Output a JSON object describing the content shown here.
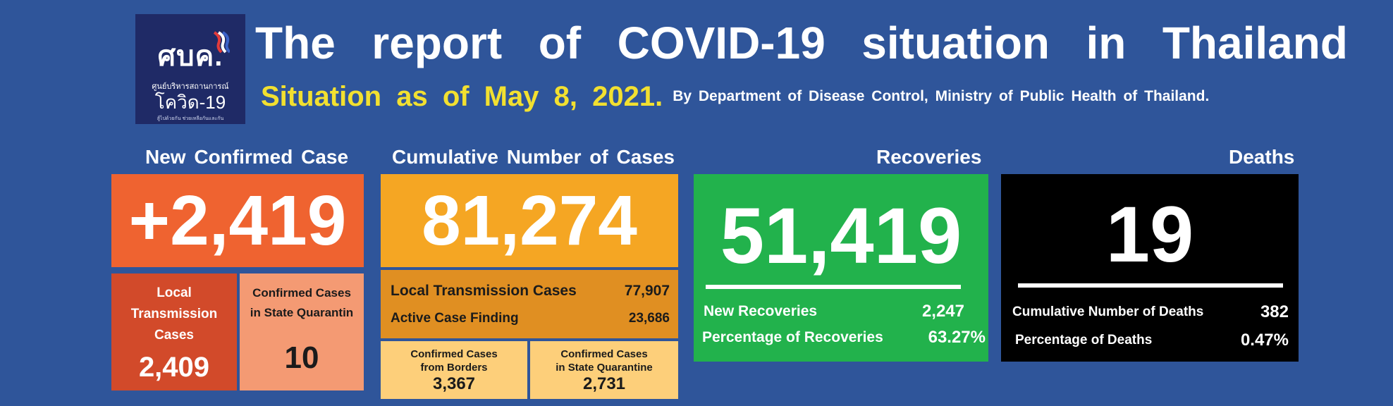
{
  "header": {
    "logo": {
      "mark": "ศบค.",
      "line1": "ศูนย์บริหารสถานการณ์",
      "line2": "โควิด-19",
      "line3": "สู้ไปด้วยกัน ช่วยเหลือกันและกัน"
    },
    "title_words": [
      "The",
      "report",
      "of",
      "COVID-19",
      "situation",
      "in",
      "Thailand"
    ],
    "situation_date": "Situation as of May 8, 2021.",
    "source": "By Department of Disease Control, Ministry of Public Health of Thailand."
  },
  "new_confirmed": {
    "heading": "New Confirmed Case",
    "value": "+2,419",
    "local": {
      "label_lines": [
        "Local",
        "Transmission",
        "Cases"
      ],
      "value": "2,409"
    },
    "quarantine": {
      "label_lines": [
        "Confirmed Cases",
        "in State Quarantin"
      ],
      "value": "10"
    }
  },
  "cumulative": {
    "heading": "Cumulative Number of Cases",
    "value": "81,274",
    "local_transmission": {
      "label": "Local Transmission Cases",
      "value": "77,907"
    },
    "active_case_finding": {
      "label": "Active Case Finding",
      "value": "23,686"
    },
    "borders": {
      "label_lines": [
        "Confirmed Cases",
        "from Borders"
      ],
      "value": "3,367"
    },
    "state_quarantine": {
      "label_lines": [
        "Confirmed Cases",
        "in State Quarantine"
      ],
      "value": "2,731"
    }
  },
  "recoveries": {
    "heading": "Recoveries",
    "value": "51,419",
    "new": {
      "label": "New Recoveries",
      "value": "2,247"
    },
    "percentage": {
      "label": "Percentage of Recoveries",
      "value": "63.27%"
    }
  },
  "deaths": {
    "heading": "Deaths",
    "value": "19",
    "cumulative": {
      "label": "Cumulative Number of Deaths",
      "value": "382"
    },
    "percentage": {
      "label": "Percentage of Deaths",
      "value": "0.47%"
    }
  },
  "colors": {
    "background": "#2f559a",
    "new_case": "#ef6330",
    "local_case": "#d24a2a",
    "quarantine_case": "#f49a73",
    "cumulative": "#f5a623",
    "cumulative_detail": "#e08f22",
    "cumulative_sub": "#fdcf7a",
    "recoveries": "#22b24c",
    "deaths": "#000000",
    "date_text": "#f2e030"
  }
}
